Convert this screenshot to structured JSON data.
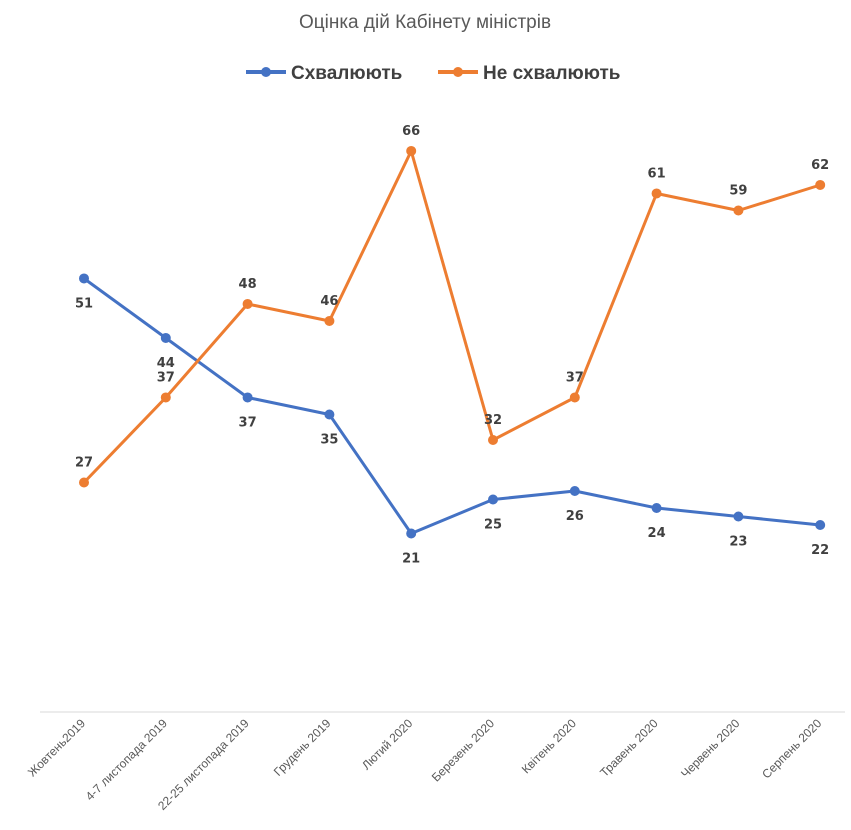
{
  "chart_data": {
    "type": "line",
    "title": "Оцінка дій Кабінету міністрів",
    "categories": [
      "Жовтень2019",
      "4-7 листопада 2019",
      "22-25 листопада 2019",
      "Грудень 2019",
      "Лютий 2020",
      "Березень 2020",
      "Квітень 2020",
      "Травень 2020",
      "Червень 2020",
      "Серпень 2020"
    ],
    "series": [
      {
        "name": "Схвалюють",
        "color": "#4472c4",
        "values": [
          51,
          44,
          37,
          35,
          21,
          25,
          26,
          24,
          23,
          22
        ],
        "label_position": "below"
      },
      {
        "name": "Не схвалюють",
        "color": "#ed7d31",
        "values": [
          27,
          37,
          48,
          46,
          66,
          32,
          37,
          61,
          59,
          62
        ],
        "label_position": "above"
      }
    ],
    "legend_position": "top",
    "grid": false,
    "ylim": [
      0,
      80
    ]
  }
}
